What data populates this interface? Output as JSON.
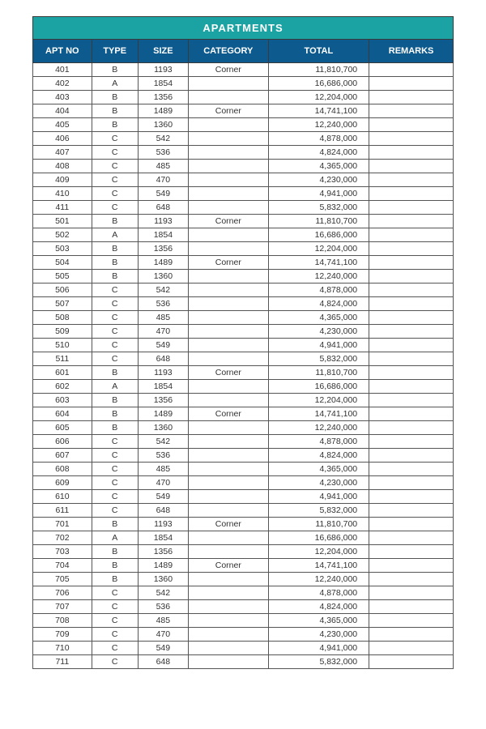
{
  "table": {
    "title": "APARTMENTS",
    "headers": [
      "APT NO",
      "TYPE",
      "SIZE",
      "CATEGORY",
      "TOTAL",
      "REMARKS"
    ],
    "rows": [
      [
        "401",
        "B",
        "1193",
        "Corner",
        "11,810,700",
        ""
      ],
      [
        "402",
        "A",
        "1854",
        "",
        "16,686,000",
        ""
      ],
      [
        "403",
        "B",
        "1356",
        "",
        "12,204,000",
        ""
      ],
      [
        "404",
        "B",
        "1489",
        "Corner",
        "14,741,100",
        ""
      ],
      [
        "405",
        "B",
        "1360",
        "",
        "12,240,000",
        ""
      ],
      [
        "406",
        "C",
        "542",
        "",
        "4,878,000",
        ""
      ],
      [
        "407",
        "C",
        "536",
        "",
        "4,824,000",
        ""
      ],
      [
        "408",
        "C",
        "485",
        "",
        "4,365,000",
        ""
      ],
      [
        "409",
        "C",
        "470",
        "",
        "4,230,000",
        ""
      ],
      [
        "410",
        "C",
        "549",
        "",
        "4,941,000",
        ""
      ],
      [
        "411",
        "C",
        "648",
        "",
        "5,832,000",
        ""
      ],
      [
        "501",
        "B",
        "1193",
        "Corner",
        "11,810,700",
        ""
      ],
      [
        "502",
        "A",
        "1854",
        "",
        "16,686,000",
        ""
      ],
      [
        "503",
        "B",
        "1356",
        "",
        "12,204,000",
        ""
      ],
      [
        "504",
        "B",
        "1489",
        "Corner",
        "14,741,100",
        ""
      ],
      [
        "505",
        "B",
        "1360",
        "",
        "12,240,000",
        ""
      ],
      [
        "506",
        "C",
        "542",
        "",
        "4,878,000",
        ""
      ],
      [
        "507",
        "C",
        "536",
        "",
        "4,824,000",
        ""
      ],
      [
        "508",
        "C",
        "485",
        "",
        "4,365,000",
        ""
      ],
      [
        "509",
        "C",
        "470",
        "",
        "4,230,000",
        ""
      ],
      [
        "510",
        "C",
        "549",
        "",
        "4,941,000",
        ""
      ],
      [
        "511",
        "C",
        "648",
        "",
        "5,832,000",
        ""
      ],
      [
        "601",
        "B",
        "1193",
        "Corner",
        "11,810,700",
        ""
      ],
      [
        "602",
        "A",
        "1854",
        "",
        "16,686,000",
        ""
      ],
      [
        "603",
        "B",
        "1356",
        "",
        "12,204,000",
        ""
      ],
      [
        "604",
        "B",
        "1489",
        "Corner",
        "14,741,100",
        ""
      ],
      [
        "605",
        "B",
        "1360",
        "",
        "12,240,000",
        ""
      ],
      [
        "606",
        "C",
        "542",
        "",
        "4,878,000",
        ""
      ],
      [
        "607",
        "C",
        "536",
        "",
        "4,824,000",
        ""
      ],
      [
        "608",
        "C",
        "485",
        "",
        "4,365,000",
        ""
      ],
      [
        "609",
        "C",
        "470",
        "",
        "4,230,000",
        ""
      ],
      [
        "610",
        "C",
        "549",
        "",
        "4,941,000",
        ""
      ],
      [
        "611",
        "C",
        "648",
        "",
        "5,832,000",
        ""
      ],
      [
        "701",
        "B",
        "1193",
        "Corner",
        "11,810,700",
        ""
      ],
      [
        "702",
        "A",
        "1854",
        "",
        "16,686,000",
        ""
      ],
      [
        "703",
        "B",
        "1356",
        "",
        "12,204,000",
        ""
      ],
      [
        "704",
        "B",
        "1489",
        "Corner",
        "14,741,100",
        ""
      ],
      [
        "705",
        "B",
        "1360",
        "",
        "12,240,000",
        ""
      ],
      [
        "706",
        "C",
        "542",
        "",
        "4,878,000",
        ""
      ],
      [
        "707",
        "C",
        "536",
        "",
        "4,824,000",
        ""
      ],
      [
        "708",
        "C",
        "485",
        "",
        "4,365,000",
        ""
      ],
      [
        "709",
        "C",
        "470",
        "",
        "4,230,000",
        ""
      ],
      [
        "710",
        "C",
        "549",
        "",
        "4,941,000",
        ""
      ],
      [
        "711",
        "C",
        "648",
        "",
        "5,832,000",
        ""
      ]
    ]
  },
  "style": {
    "title_bg": "#1ba3a3",
    "header_bg": "#0d5a8e",
    "header_fg": "#ffffff",
    "border_color": "#555555",
    "cell_fg": "#333333"
  }
}
